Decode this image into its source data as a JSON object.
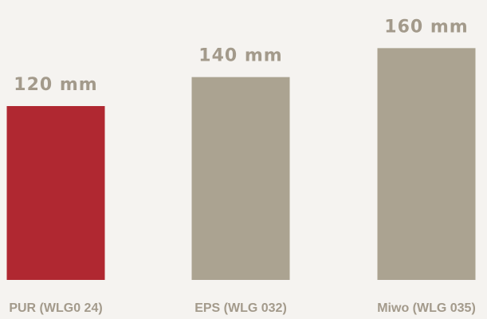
{
  "chart_data": {
    "type": "bar",
    "categories": [
      "PUR (WLG0 24)",
      "EPS (WLG 032)",
      "Miwo (WLG 035)"
    ],
    "values": [
      120,
      140,
      160
    ],
    "value_labels": [
      "120 mm",
      "140 mm",
      "160 mm"
    ],
    "colors": [
      "#b02831",
      "#aba391",
      "#aba391"
    ],
    "title": "",
    "xlabel": "",
    "ylabel": "",
    "grid": false,
    "legend": "none"
  }
}
